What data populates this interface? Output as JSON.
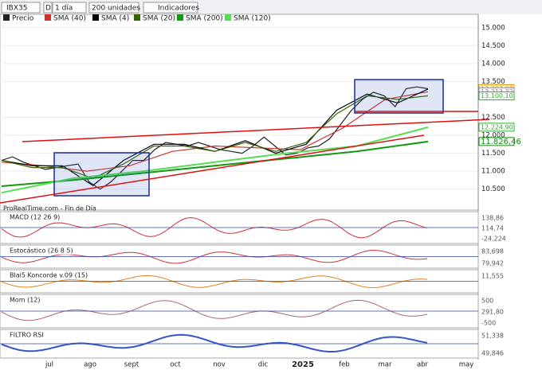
{
  "toolbar": {
    "symbol": "IBX35",
    "mode": "D",
    "period": "1 día",
    "units": "200 unidades",
    "indicators": "Indicadores"
  },
  "chart_data": {
    "type": "line",
    "source": "ProRealTime.com - Fin de Día",
    "ylim": [
      9960,
      15150
    ],
    "yticks": [
      {
        "value": 15000,
        "label": "15.000"
      },
      {
        "value": 14500,
        "label": "14.500"
      },
      {
        "value": 14000,
        "label": "14.000"
      },
      {
        "value": 13500,
        "label": "13.500"
      },
      {
        "value": 12500,
        "label": "12.500"
      },
      {
        "value": 12000,
        "label": "12.000"
      },
      {
        "value": 11500,
        "label": "11.500"
      },
      {
        "value": 11000,
        "label": "11.000"
      },
      {
        "value": 10500,
        "label": "10.500"
      }
    ],
    "price_labels": [
      {
        "value": 13297,
        "label": "13.297,00",
        "color": "#e69500"
      },
      {
        "value": 13213.32,
        "label": "13.213,32",
        "color": "#888888"
      },
      {
        "value": 13100.1,
        "label": "13.100,10",
        "color": "#33aa33"
      },
      {
        "value": 12224.9,
        "label": "12.224,90",
        "color": "#33aa33"
      },
      {
        "value": 11826.46,
        "label": "11.826,46",
        "color": "#118811"
      }
    ],
    "series": [
      {
        "name": "Precio",
        "color": "#222222",
        "values": [
          11300,
          11400,
          11250,
          11150,
          11050,
          11100,
          11150,
          11200,
          10700,
          10500,
          10700,
          11000,
          11300,
          11300,
          11600,
          11800,
          11750,
          11700,
          11800,
          11700,
          11600,
          11550,
          11500,
          11700,
          11950,
          11700,
          11450,
          11500,
          11650,
          11700,
          11900,
          12300,
          12700,
          13000,
          13200,
          13100,
          12800,
          13300,
          13350,
          13297
        ]
      },
      {
        "name": "SMA (40)",
        "color": "#cc3333",
        "values": [
          11250,
          11150,
          11000,
          11150,
          11550,
          11700,
          11650,
          11600,
          12200,
          13000,
          13213
        ]
      },
      {
        "name": "SMA (4)",
        "color": "#000000",
        "values": [
          11300,
          11150,
          11150,
          10600,
          11300,
          11750,
          11750,
          11550,
          11850,
          11500,
          11750,
          12700,
          13150,
          12900,
          13290
        ]
      },
      {
        "name": "SMA (20)",
        "color": "#336600",
        "values": [
          11300,
          11100,
          11100,
          10800,
          11200,
          11700,
          11700,
          11550,
          11800,
          11550,
          11800,
          12600,
          13100,
          13000,
          13100
        ]
      },
      {
        "name": "SMA (200)",
        "color": "#119911",
        "values": [
          10580,
          10750,
          10950,
          11150,
          11350,
          11550,
          11826
        ]
      },
      {
        "name": "SMA (120)",
        "color": "#55dd55",
        "values": [
          10400,
          10800,
          11000,
          11250,
          11500,
          11700,
          12224
        ]
      }
    ]
  },
  "x_axis": {
    "labels": [
      "jul",
      "ago",
      "sept",
      "oct",
      "nov",
      "dic",
      "2025",
      "feb",
      "mar",
      "abr",
      "may"
    ]
  },
  "panels": [
    {
      "title": "MACD (12 26 9)",
      "labels": [
        "138,86",
        "114,74",
        "-24,224"
      ]
    },
    {
      "title": "Estocástico (26 8 5)",
      "labels": [
        "83,698",
        "79,942"
      ]
    },
    {
      "title": "Blai5 Koncorde v.09 (15)",
      "labels": [
        "11,555"
      ]
    },
    {
      "title": "Mom (12)",
      "labels": [
        "500",
        "291,80",
        "-500"
      ]
    },
    {
      "title": "FILTRO RSI",
      "labels": [
        "51,338",
        "49,846"
      ]
    }
  ]
}
